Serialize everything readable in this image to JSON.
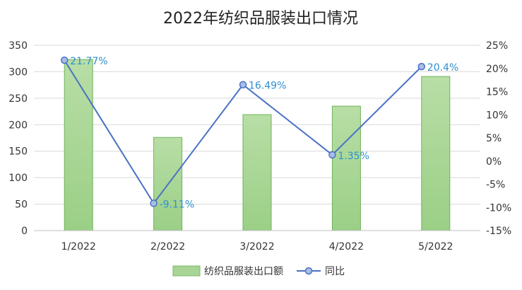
{
  "chart_data": {
    "type": "bar",
    "title": "2022年纺织品服装出口情况",
    "categories": [
      "1/2022",
      "2/2022",
      "3/2022",
      "4/2022",
      "5/2022"
    ],
    "series": [
      {
        "name": "纺织品服装出口额",
        "type": "bar",
        "axis": "left",
        "values": [
          323,
          176,
          219,
          235,
          291
        ],
        "color": "#8fc97a"
      },
      {
        "name": "同比",
        "type": "line",
        "axis": "right",
        "values": [
          21.77,
          -9.11,
          16.49,
          1.35,
          20.4
        ],
        "labels": [
          "21.77%",
          "-9.11%",
          "16.49%",
          "1.35%",
          "20.4%"
        ],
        "color": "#4a72c4"
      }
    ],
    "y_left": {
      "min": 0,
      "max": 350,
      "ticks": [
        "0",
        "50",
        "100",
        "150",
        "200",
        "250",
        "300",
        "350"
      ]
    },
    "y_right": {
      "min": -15,
      "max": 25,
      "ticks": [
        "-15%",
        "-10%",
        "-5%",
        "0%",
        "5%",
        "10%",
        "15%",
        "20%",
        "25%"
      ]
    },
    "grid": true,
    "legend_position": "bottom",
    "label_color": "#2f8fd0"
  }
}
